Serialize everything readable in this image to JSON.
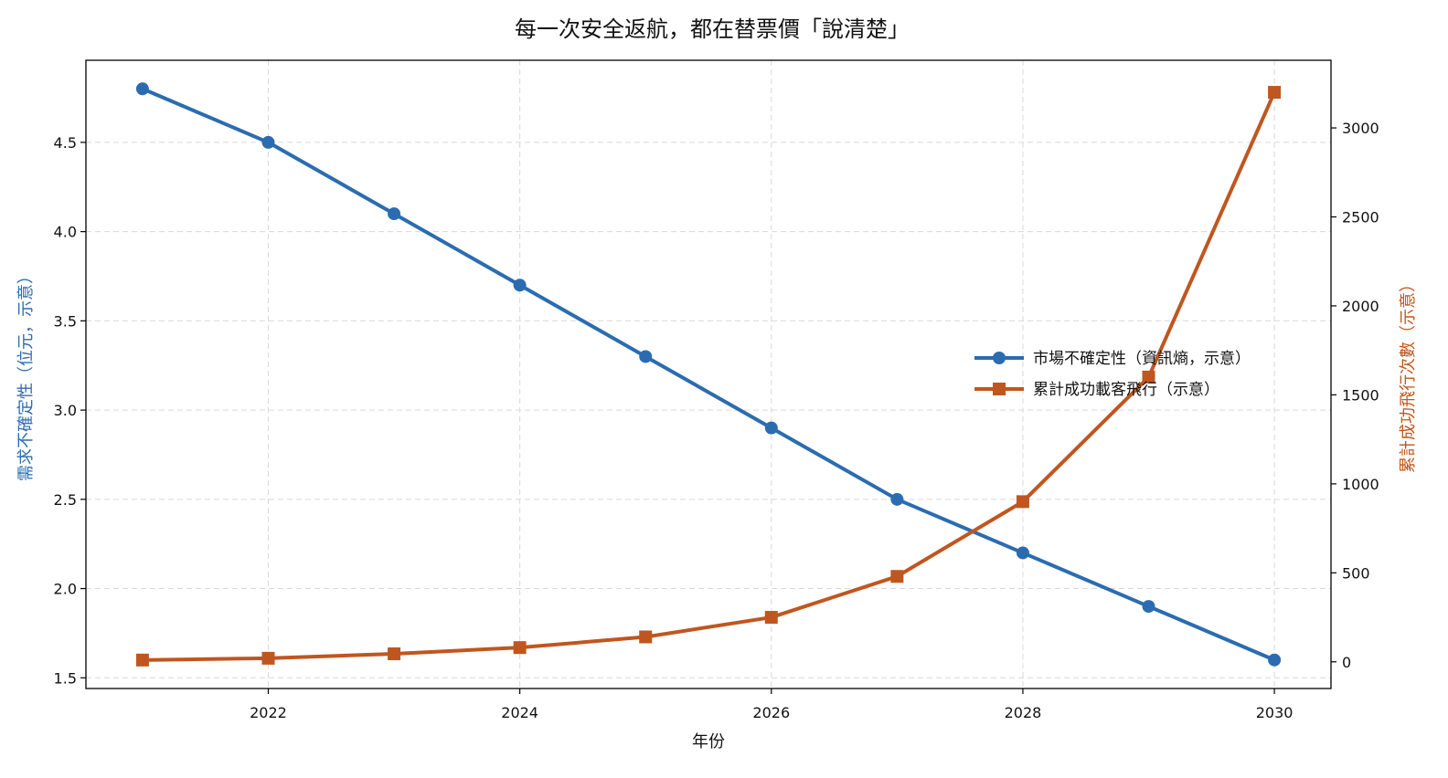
{
  "chart_data": {
    "type": "line",
    "title": "每一次安全返航，都在替票價「說清楚」",
    "xlabel": "年份",
    "ylabel_left": "需求不確定性（位元，示意）",
    "ylabel_right": "累計成功飛行次數（示意）",
    "x": [
      2021,
      2022,
      2023,
      2024,
      2025,
      2026,
      2027,
      2028,
      2029,
      2030
    ],
    "x_ticks": [
      "2022",
      "2024",
      "2026",
      "2028",
      "2030"
    ],
    "xlim": [
      2020.55,
      2030.45
    ],
    "ylim_left": [
      1.44,
      4.96
    ],
    "ylim_right": [
      -150,
      3380
    ],
    "y_ticks_left": [
      "1.5",
      "2.0",
      "2.5",
      "3.0",
      "3.5",
      "4.0",
      "4.5"
    ],
    "y_ticks_right": [
      "0",
      "500",
      "1000",
      "1500",
      "2000",
      "2500",
      "3000"
    ],
    "grid": true,
    "legend_position": "center-right",
    "series": [
      {
        "name": "市場不確定性（資訊熵，示意）",
        "axis": "left",
        "color": "#2b6cb0",
        "marker": "circle",
        "values": [
          4.8,
          4.5,
          4.1,
          3.7,
          3.3,
          2.9,
          2.5,
          2.2,
          1.9,
          1.6
        ]
      },
      {
        "name": "累計成功載客飛行（示意）",
        "axis": "right",
        "color": "#c0561f",
        "marker": "square",
        "values": [
          10,
          20,
          45,
          80,
          140,
          250,
          480,
          900,
          1600,
          3200
        ]
      }
    ]
  }
}
